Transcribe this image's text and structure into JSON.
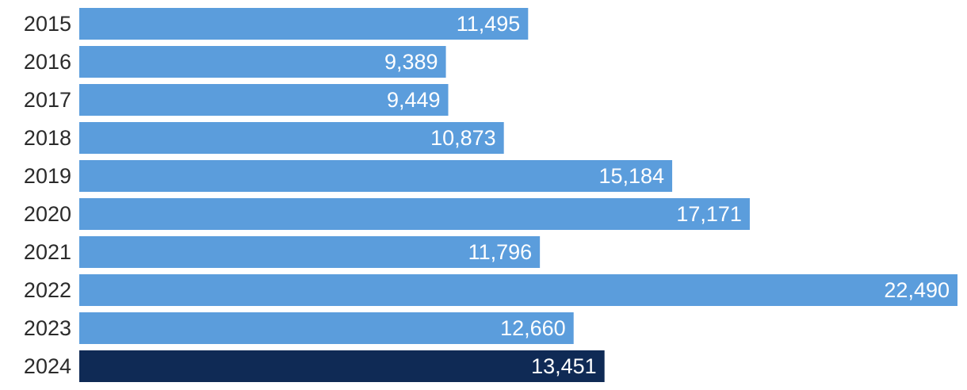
{
  "chart_data": {
    "type": "bar",
    "orientation": "horizontal",
    "categories": [
      "2015",
      "2016",
      "2017",
      "2018",
      "2019",
      "2020",
      "2021",
      "2022",
      "2023",
      "2024"
    ],
    "values": [
      11495,
      9389,
      9449,
      10873,
      15184,
      17171,
      11796,
      22490,
      12660,
      13451
    ],
    "value_labels": [
      "11,495",
      "9,389",
      "9,449",
      "10,873",
      "15,184",
      "17,171",
      "11,796",
      "22,490",
      "12,660",
      "13,451"
    ],
    "highlight_category": "2024",
    "title": "",
    "xlabel": "",
    "ylabel": "",
    "xlim": [
      0,
      22490
    ],
    "grid": false,
    "colors": {
      "bar": "#5b9ddc",
      "highlight": "#0f2a55",
      "value_text": "#ffffff",
      "category_text": "#2b2b2b"
    }
  }
}
